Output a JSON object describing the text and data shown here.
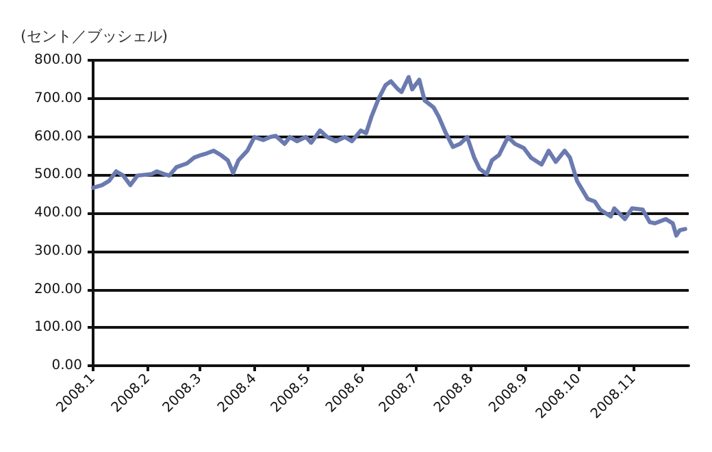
{
  "chart_data": {
    "type": "line",
    "ylabel": "(セント／ブッシェル)",
    "x": [
      "2008-01-01",
      "2008-01-06",
      "2008-01-10",
      "2008-01-14",
      "2008-01-18",
      "2008-01-22",
      "2008-01-26",
      "2008-02-03",
      "2008-02-06",
      "2008-02-10",
      "2008-02-13",
      "2008-02-17",
      "2008-02-23",
      "2008-02-27",
      "2008-03-02",
      "2008-03-05",
      "2008-03-09",
      "2008-03-13",
      "2008-03-17",
      "2008-03-20",
      "2008-03-23",
      "2008-03-28",
      "2008-04-01",
      "2008-04-06",
      "2008-04-10",
      "2008-04-13",
      "2008-04-18",
      "2008-04-21",
      "2008-04-25",
      "2008-04-30",
      "2008-05-03",
      "2008-05-08",
      "2008-05-12",
      "2008-05-17",
      "2008-05-22",
      "2008-05-26",
      "2008-05-31",
      "2008-06-03",
      "2008-06-06",
      "2008-06-10",
      "2008-06-14",
      "2008-06-17",
      "2008-06-21",
      "2008-06-23",
      "2008-06-27",
      "2008-06-29",
      "2008-07-03",
      "2008-07-06",
      "2008-07-11",
      "2008-07-14",
      "2008-07-18",
      "2008-07-22",
      "2008-07-26",
      "2008-07-30",
      "2008-08-03",
      "2008-08-06",
      "2008-08-10",
      "2008-08-13",
      "2008-08-17",
      "2008-08-22",
      "2008-08-26",
      "2008-08-31",
      "2008-09-04",
      "2008-09-10",
      "2008-09-14",
      "2008-09-18",
      "2008-09-23",
      "2008-09-26",
      "2008-09-30",
      "2008-10-06",
      "2008-10-10",
      "2008-10-13",
      "2008-10-19",
      "2008-10-21",
      "2008-10-27",
      "2008-10-31",
      "2008-11-06",
      "2008-11-10",
      "2008-11-13",
      "2008-11-19",
      "2008-11-23",
      "2008-11-25",
      "2008-11-27",
      "2008-11-30"
    ],
    "series": [
      {
        "color": "#6b7bb0",
        "values": [
          466,
          473,
          484,
          509,
          498,
          473,
          498,
          502,
          509,
          502,
          498,
          520,
          530,
          545,
          552,
          556,
          563,
          552,
          538,
          505,
          538,
          563,
          599,
          591,
          599,
          602,
          581,
          599,
          588,
          599,
          584,
          616,
          599,
          588,
          599,
          588,
          616,
          609,
          652,
          699,
          735,
          745,
          724,
          717,
          756,
          724,
          749,
          695,
          677,
          652,
          609,
          573,
          581,
          599,
          545,
          516,
          502,
          538,
          552,
          599,
          581,
          570,
          545,
          527,
          563,
          534,
          563,
          545,
          484,
          437,
          430,
          409,
          391,
          412,
          384,
          412,
          409,
          376,
          373,
          384,
          373,
          341,
          355,
          358
        ]
      }
    ],
    "xlim": [
      "2008-01-01",
      "2008-12-02"
    ],
    "xticks": [
      {
        "value": "2008-01-01",
        "label": "2008.1"
      },
      {
        "value": "2008-02-01",
        "label": "2008.2"
      },
      {
        "value": "2008-03-01",
        "label": "2008.3"
      },
      {
        "value": "2008-04-01",
        "label": "2008.4"
      },
      {
        "value": "2008-05-01",
        "label": "2008.5"
      },
      {
        "value": "2008-06-01",
        "label": "2008.6"
      },
      {
        "value": "2008-07-01",
        "label": "2008.7"
      },
      {
        "value": "2008-08-01",
        "label": "2008.8"
      },
      {
        "value": "2008-09-01",
        "label": "2008.9"
      },
      {
        "value": "2008-10-01",
        "label": "2008.10"
      },
      {
        "value": "2008-11-01",
        "label": "2008.11"
      }
    ],
    "ylim": [
      0,
      800
    ],
    "yticks": [
      {
        "value": 0,
        "label": "0.00"
      },
      {
        "value": 100,
        "label": "100.00"
      },
      {
        "value": 200,
        "label": "200.00"
      },
      {
        "value": 300,
        "label": "300.00"
      },
      {
        "value": 400,
        "label": "400.00"
      },
      {
        "value": 500,
        "label": "500.00"
      },
      {
        "value": 600,
        "label": "600.00"
      },
      {
        "value": 700,
        "label": "700.00"
      },
      {
        "value": 800,
        "label": "800.00"
      }
    ],
    "grid": "y",
    "marker": "none",
    "line_style": "solid"
  }
}
